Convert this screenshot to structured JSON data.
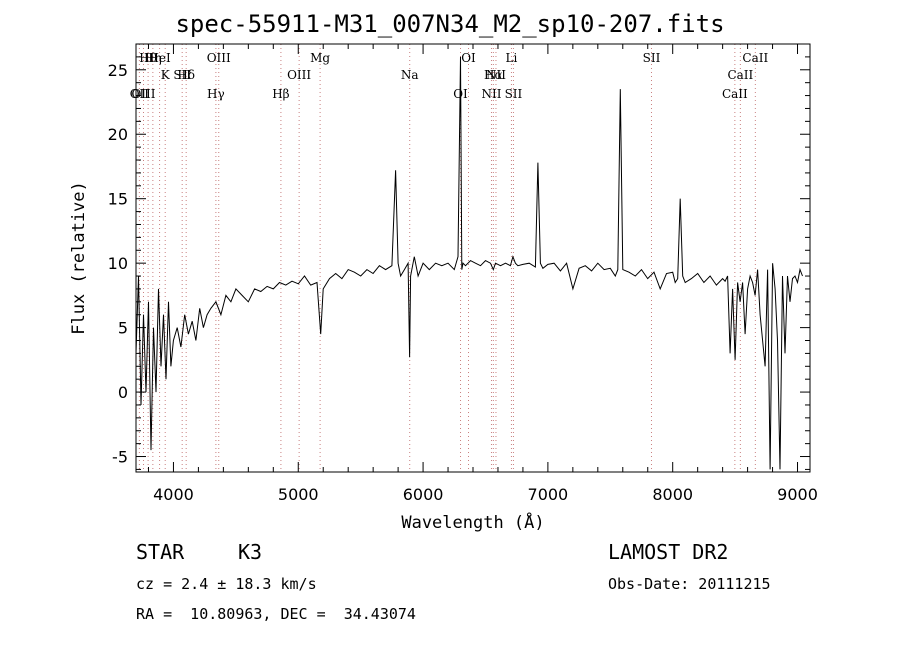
{
  "chart_data": {
    "type": "line",
    "title": "spec-55911-M31_007N34_M2_sp10-207.fits",
    "xlabel": "Wavelength (Å)",
    "ylabel": "Flux (relative)",
    "xlim": [
      3700,
      9100
    ],
    "ylim": [
      -6.2,
      27
    ],
    "xticks": [
      4000,
      5000,
      6000,
      7000,
      8000,
      9000
    ],
    "yticks": [
      -5,
      0,
      5,
      10,
      15,
      20,
      25
    ],
    "grid": false,
    "series": [
      {
        "x": [
          3700,
          3720,
          3740,
          3760,
          3780,
          3800,
          3820,
          3840,
          3860,
          3880,
          3900,
          3920,
          3940,
          3960,
          3980,
          4000,
          4030,
          4060,
          4090,
          4120,
          4150,
          4180,
          4210,
          4240,
          4270,
          4300,
          4340,
          4380,
          4420,
          4460,
          4500,
          4550,
          4600,
          4650,
          4700,
          4750,
          4800,
          4850,
          4900,
          4950,
          5000,
          5050,
          5100,
          5150,
          5180,
          5200,
          5250,
          5300,
          5350,
          5400,
          5450,
          5500,
          5550,
          5600,
          5650,
          5700,
          5750,
          5780,
          5800,
          5820,
          5850,
          5880,
          5892,
          5900,
          5930,
          5960,
          6000,
          6050,
          6100,
          6150,
          6200,
          6250,
          6280,
          6300,
          6310,
          6320,
          6340,
          6380,
          6420,
          6460,
          6500,
          6540,
          6563,
          6580,
          6620,
          6660,
          6700,
          6720,
          6740,
          6760,
          6800,
          6850,
          6900,
          6920,
          6940,
          6960,
          7000,
          7050,
          7100,
          7150,
          7200,
          7250,
          7300,
          7350,
          7400,
          7450,
          7500,
          7540,
          7560,
          7580,
          7600,
          7650,
          7700,
          7750,
          7800,
          7850,
          7900,
          7950,
          8000,
          8020,
          8040,
          8060,
          8080,
          8100,
          8150,
          8200,
          8250,
          8300,
          8350,
          8400,
          8420,
          8440,
          8460,
          8480,
          8500,
          8520,
          8540,
          8560,
          8580,
          8600,
          8620,
          8640,
          8660,
          8680,
          8700,
          8720,
          8740,
          8760,
          8780,
          8800,
          8820,
          8840,
          8860,
          8880,
          8900,
          8920,
          8940,
          8960,
          8980,
          9000,
          9020,
          9040
        ],
        "y": [
          3,
          9,
          -1,
          6,
          0,
          7,
          -4.5,
          5,
          0,
          8,
          2,
          6,
          1,
          7,
          2,
          4,
          5,
          3.5,
          6,
          4.5,
          5.5,
          4,
          6.5,
          5,
          6,
          6.5,
          7,
          6,
          7.5,
          7,
          8,
          7.5,
          7,
          8,
          7.8,
          8.2,
          8,
          8.5,
          8.3,
          8.6,
          8.4,
          9,
          8.3,
          8.5,
          4.5,
          8,
          8.8,
          9.2,
          8.8,
          9.5,
          9.3,
          9,
          9.5,
          9.2,
          9.8,
          9.5,
          9.8,
          17.2,
          10,
          9,
          9.5,
          10,
          2.7,
          9,
          10.5,
          9,
          10,
          9.5,
          10,
          9.8,
          10,
          9.5,
          10.5,
          26,
          9.5,
          10,
          9.8,
          10.2,
          10,
          9.8,
          10.2,
          10,
          9.5,
          10,
          9.8,
          10,
          9.8,
          10.5,
          10,
          9.8,
          9.9,
          10,
          9.7,
          17.8,
          10,
          9.6,
          9.9,
          10,
          9.4,
          10,
          8,
          9.6,
          9.8,
          9.4,
          10,
          9.5,
          9.6,
          9,
          9.5,
          23.5,
          9.5,
          9.3,
          9,
          9.5,
          8.8,
          9.3,
          8,
          9.2,
          9.3,
          8.5,
          8.8,
          15,
          9,
          8.5,
          8.8,
          9.2,
          8.5,
          9,
          8.3,
          8.8,
          8.6,
          9,
          3,
          8,
          2.5,
          8.5,
          7,
          8.5,
          4.5,
          8,
          9,
          8.5,
          7.5,
          9.5,
          6,
          4,
          2,
          9.5,
          -6,
          10,
          8,
          4,
          -6,
          9,
          3,
          9,
          7,
          8.8,
          9,
          8.5,
          9.5,
          9
        ]
      }
    ],
    "lines": [
      {
        "label": "Hθ",
        "wavelength": 3797
      },
      {
        "label": "K",
        "wavelength": 3934
      },
      {
        "label": "OII",
        "wavelength": 3727
      },
      {
        "label": "HeI",
        "wavelength": 3889
      },
      {
        "label": "Hδ",
        "wavelength": 4102
      },
      {
        "label": "OIII",
        "wavelength": 3760
      },
      {
        "label": "Hη",
        "wavelength": 3835
      },
      {
        "label": "SII",
        "wavelength": 4070
      },
      {
        "label": "Hγ",
        "wavelength": 4340
      },
      {
        "label": "OIII",
        "wavelength": 4363
      },
      {
        "label": "OIII",
        "wavelength": 5007
      },
      {
        "label": "Hβ",
        "wavelength": 4861
      },
      {
        "label": "Mg",
        "wavelength": 5175
      },
      {
        "label": "Na",
        "wavelength": 5893
      },
      {
        "label": "OI",
        "wavelength": 6300
      },
      {
        "label": "OI",
        "wavelength": 6364
      },
      {
        "label": "Hα",
        "wavelength": 6563
      },
      {
        "label": "NII",
        "wavelength": 6548
      },
      {
        "label": "Li",
        "wavelength": 6708
      },
      {
        "label": "NII",
        "wavelength": 6584
      },
      {
        "label": "SII",
        "wavelength": 6724
      },
      {
        "label": "SII",
        "wavelength": 7830
      },
      {
        "label": "CaII",
        "wavelength": 8542
      },
      {
        "label": "CaII",
        "wavelength": 8498
      },
      {
        "label": "CaII",
        "wavelength": 8662
      }
    ]
  },
  "info": {
    "star_label": "STAR",
    "subclass": "K3",
    "survey": "LAMOST DR2",
    "cz": "cz = 2.4 ± 18.3 km/s",
    "obs_date": "Obs-Date: 20111215",
    "coords": "RA =  10.80963, DEC =  34.43074"
  }
}
